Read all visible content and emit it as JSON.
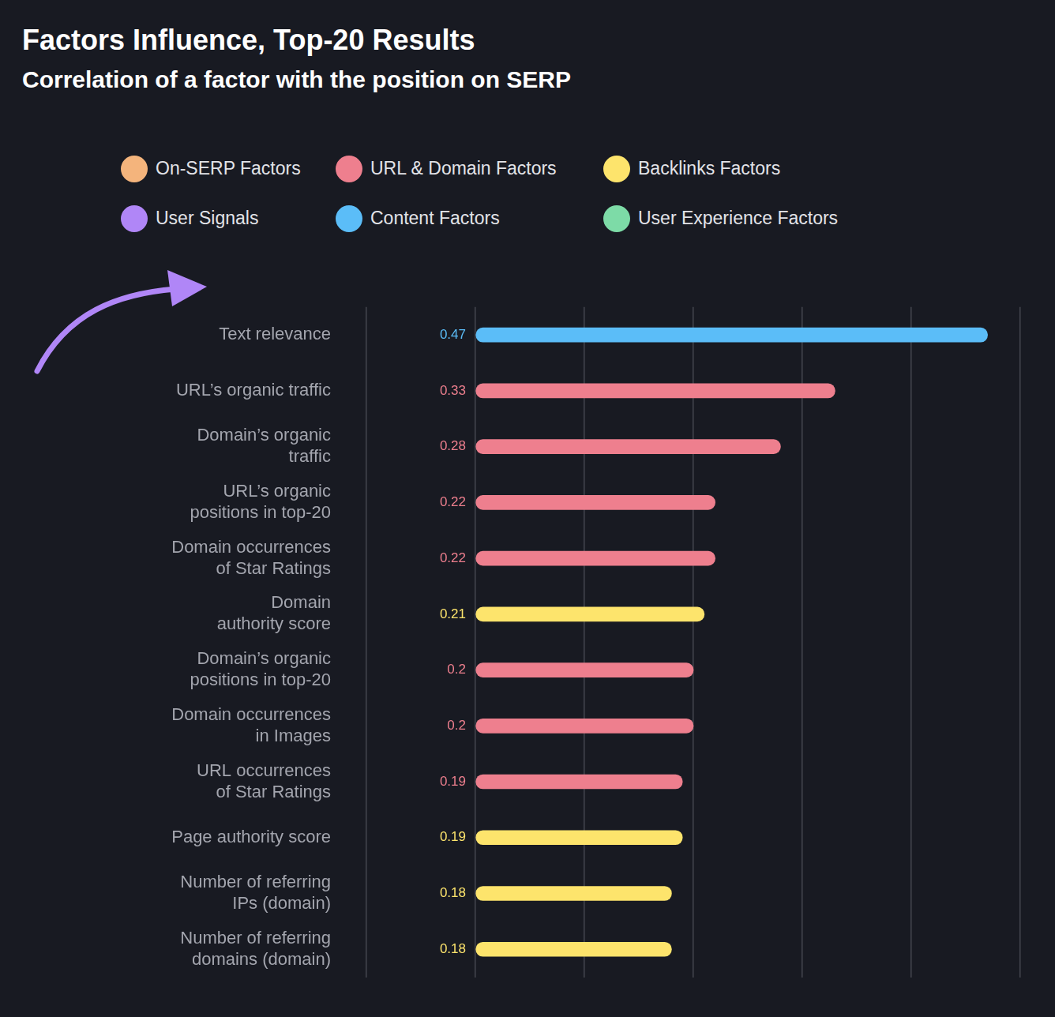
{
  "chart_data": {
    "type": "bar",
    "orientation": "horizontal",
    "title": "Factors Influence, Top-20 Results",
    "subtitle": "Correlation of a factor with the position on SERP",
    "categories": [
      "Text relevance",
      "URL’s organic traffic",
      "Domain’s organic\ntraffic",
      "URL’s organic\npositions in top-20",
      "Domain occurrences\nof Star Ratings",
      "Domain\nauthority score",
      "Domain’s organic\npositions in top-20",
      "Domain occurrences\nin Images",
      "URL occurrences\nof Star Ratings",
      "Page authority score",
      "Number of referring\nIPs (domain)",
      "Number of referring\ndomains (domain)"
    ],
    "series": [
      {
        "name": "On-SERP Factors",
        "color": "#f4b47c",
        "values": [
          null,
          null,
          null,
          null,
          null,
          null,
          null,
          null,
          null,
          null,
          null,
          null
        ]
      },
      {
        "name": "URL & Domain Factors",
        "color": "#ee7f8e",
        "values": [
          null,
          0.33,
          0.28,
          0.22,
          0.22,
          null,
          0.2,
          0.2,
          0.19,
          null,
          null,
          null
        ]
      },
      {
        "name": "Backlinks Factors",
        "color": "#fde46c",
        "values": [
          null,
          null,
          null,
          null,
          null,
          0.21,
          null,
          null,
          null,
          0.19,
          0.18,
          0.18
        ]
      },
      {
        "name": "User Signals",
        "color": "#b086f7",
        "values": [
          null,
          null,
          null,
          null,
          null,
          null,
          null,
          null,
          null,
          null,
          null,
          null
        ]
      },
      {
        "name": "Content Factors",
        "color": "#5bbdf8",
        "values": [
          0.47,
          null,
          null,
          null,
          null,
          null,
          null,
          null,
          null,
          null,
          null,
          null
        ]
      },
      {
        "name": "User Experience Factors",
        "color": "#7ddba7",
        "values": [
          null,
          null,
          null,
          null,
          null,
          null,
          null,
          null,
          null,
          null,
          null,
          null
        ]
      }
    ],
    "xlim": [
      -0.1,
      0.5
    ],
    "xticks": [
      -0.1,
      0,
      0.1,
      0.2,
      0.3,
      0.4,
      0.5
    ],
    "grid": true,
    "legend": "top",
    "data_labels": true,
    "tick_labels": "y"
  }
}
